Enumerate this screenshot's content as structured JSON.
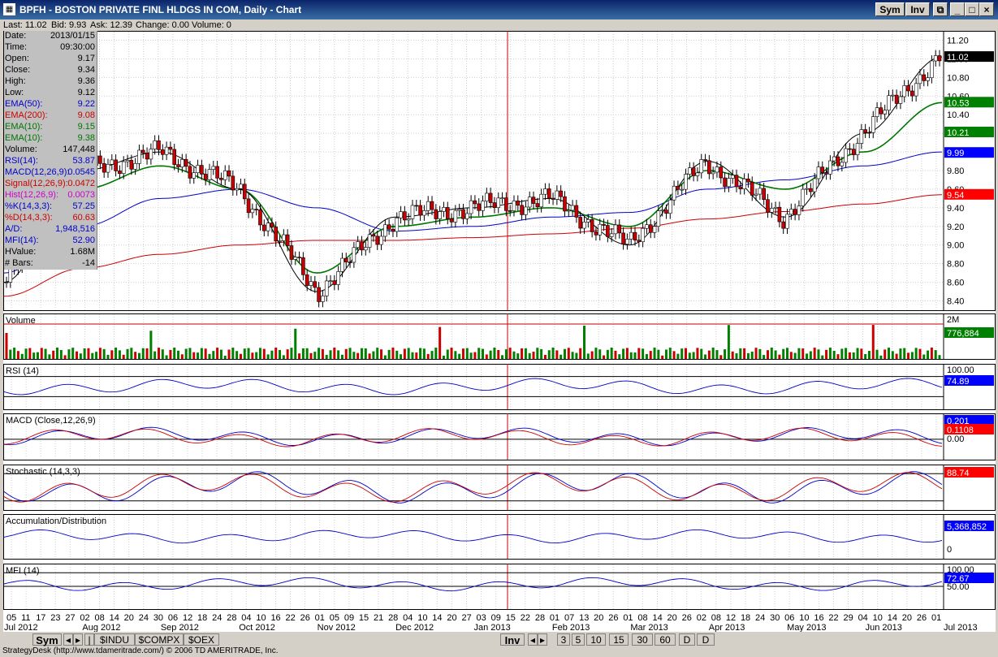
{
  "window": {
    "title": "BPFH - BOSTON PRIVATE FINL HLDGS IN COM, Daily - Chart",
    "sym_button": "Sym",
    "inv_button": "Inv"
  },
  "quote": {
    "last": "Last: 11.02",
    "bid": "Bid: 9.93",
    "ask": "Ask: 12.39",
    "change": "Change: 0.00",
    "volume": "Volume: 0"
  },
  "info_panel": [
    {
      "k": "Date:",
      "v": "2013/01/15",
      "color": "#000000"
    },
    {
      "k": "Time:",
      "v": "09:30:00",
      "color": "#000000"
    },
    {
      "k": "Open:",
      "v": "9.17",
      "color": "#000000"
    },
    {
      "k": "Close:",
      "v": "9.34",
      "color": "#000000"
    },
    {
      "k": "High:",
      "v": "9.36",
      "color": "#000000"
    },
    {
      "k": "Low:",
      "v": "9.12",
      "color": "#000000"
    },
    {
      "k": "EMA(50):",
      "v": "9.22",
      "color": "#0000cc"
    },
    {
      "k": "EMA(200):",
      "v": "9.08",
      "color": "#cc0000"
    },
    {
      "k": "EMA(10):",
      "v": "9.15",
      "color": "#007700"
    },
    {
      "k": "EMA(10):",
      "v": "9.38",
      "color": "#007700"
    },
    {
      "k": "Volume:",
      "v": "147,448",
      "color": "#000000"
    },
    {
      "k": "RSI(14):",
      "v": "53.87",
      "color": "#0000cc"
    },
    {
      "k": "MACD(12,26,9):",
      "v": "0.0545",
      "color": "#0000cc"
    },
    {
      "k": "Signal(12,26,9):",
      "v": "0.0472",
      "color": "#cc0000"
    },
    {
      "k": "Hist(12,26,9):",
      "v": "0.0073",
      "color": "#cc00cc"
    },
    {
      "k": "%K(14,3,3):",
      "v": "57.25",
      "color": "#0000cc"
    },
    {
      "k": "%D(14,3,3):",
      "v": "60.63",
      "color": "#cc0000"
    },
    {
      "k": "A/D:",
      "v": "1,948,516",
      "color": "#0000cc"
    },
    {
      "k": "MFI(14):",
      "v": "52.90",
      "color": "#0000cc"
    },
    {
      "k": "HValue:",
      "v": "1.68M",
      "color": "#000000"
    },
    {
      "k": "# Bars:",
      "v": "-14",
      "color": "#000000"
    }
  ],
  "panels": {
    "volume": {
      "label": "Volume",
      "scale_top": "2M",
      "badge": "776,884"
    },
    "rsi": {
      "label": "RSI (14)",
      "scale_top": "100.00",
      "badge": "74.89"
    },
    "macd": {
      "label": "MACD (Close,12,26,9)",
      "badge_top": "0.201",
      "badge_red": "0.1108",
      "scale_zero": "0.00"
    },
    "stoch": {
      "label": "Stochastic (14,3,3)",
      "scale_top": "100.00",
      "badge": "88.74"
    },
    "ad": {
      "label": "Accumulation/Distribution",
      "badge": "5,368,852",
      "scale_zero": "0"
    },
    "mfi": {
      "label": "MFI (14)",
      "scale_top": "100.00",
      "scale_mid": "50.00",
      "badge": "72.67"
    }
  },
  "price_badges": [
    {
      "text": "11.02",
      "value": 11.02,
      "bg": "#000000",
      "fg": "#ffffff"
    },
    {
      "text": "10.53",
      "value": 10.53,
      "bg": "#008000",
      "fg": "#ffffff"
    },
    {
      "text": "10.21",
      "value": 10.21,
      "bg": "#008000",
      "fg": "#ffffff"
    },
    {
      "text": "9.99",
      "value": 9.99,
      "bg": "#0000ff",
      "fg": "#ffffff"
    },
    {
      "text": "9.54",
      "value": 9.54,
      "bg": "#ff0000",
      "fg": "#ffffff"
    }
  ],
  "x_axis": {
    "days": [
      "05",
      "11",
      "17",
      "23",
      "27",
      "02",
      "08",
      "14",
      "20",
      "24",
      "30",
      "06",
      "12",
      "18",
      "24",
      "28",
      "04",
      "10",
      "16",
      "22",
      "26",
      "01",
      "05",
      "09",
      "15",
      "21",
      "28",
      "04",
      "10",
      "14",
      "20",
      "27",
      "03",
      "09",
      "15",
      "22",
      "28",
      "01",
      "07",
      "13",
      "20",
      "26",
      "01",
      "08",
      "14",
      "20",
      "26",
      "02",
      "08",
      "12",
      "18",
      "24",
      "30",
      "06",
      "10",
      "16",
      "22",
      "29",
      "04",
      "10",
      "14",
      "20",
      "26",
      "01"
    ],
    "months": [
      "Jul 2012",
      "Aug 2012",
      "Sep 2012",
      "Oct 2012",
      "Nov 2012",
      "Dec 2012",
      "Jan 2013",
      "Feb 2013",
      "Mar 2013",
      "Apr 2013",
      "May 2013",
      "Jun 2013",
      "Jul 2013"
    ]
  },
  "bottom_bar": {
    "sym_tab": "Sym",
    "symbols": [
      "$INDU",
      "$COMPX",
      "$OEX"
    ],
    "inv_tab": "Inv",
    "periods": [
      "3",
      "5",
      "10",
      "15",
      "30",
      "60",
      "D",
      "D"
    ]
  },
  "status": "StrategyDesk (http://www.tdameritrade.com/) © 2006 TD AMERITRADE, Inc.",
  "chart_data": {
    "type": "line",
    "title": "BPFH - BOSTON PRIVATE FINL HLDGS IN COM, Daily - Chart",
    "ylim": [
      8.3,
      11.3
    ],
    "y_ticks": [
      8.4,
      8.6,
      8.8,
      9.0,
      9.2,
      9.4,
      9.6,
      9.8,
      10.0,
      10.2,
      10.4,
      10.6,
      10.8,
      11.0,
      11.2
    ],
    "x": [
      "Jul 2012",
      "Aug 2012",
      "Sep 2012",
      "Oct 2012",
      "Nov 2012",
      "Dec 2012",
      "Jan 2013",
      "Feb 2013",
      "Mar 2013",
      "Apr 2013",
      "May 2013",
      "Jun 2013",
      "Jul 2013"
    ],
    "series": [
      {
        "name": "EMA(50)",
        "color": "#0000cc",
        "values": [
          8.7,
          9.2,
          9.5,
          9.6,
          9.4,
          9.15,
          9.2,
          9.3,
          9.35,
          9.6,
          9.7,
          9.85,
          10.0
        ]
      },
      {
        "name": "EMA(200)",
        "color": "#cc0000",
        "values": [
          8.45,
          8.75,
          8.9,
          9.0,
          9.05,
          9.05,
          9.08,
          9.12,
          9.18,
          9.28,
          9.36,
          9.44,
          9.54
        ]
      },
      {
        "name": "EMA(10)",
        "color": "#007700",
        "values": [
          8.8,
          9.6,
          9.85,
          9.6,
          8.7,
          9.2,
          9.3,
          9.4,
          9.2,
          9.8,
          9.6,
          10.0,
          10.53
        ]
      },
      {
        "name": "Close",
        "color": "#000000",
        "values": [
          8.6,
          9.8,
          10.0,
          9.6,
          8.5,
          9.3,
          9.4,
          9.5,
          9.0,
          9.9,
          9.3,
          10.2,
          11.02
        ]
      }
    ]
  }
}
